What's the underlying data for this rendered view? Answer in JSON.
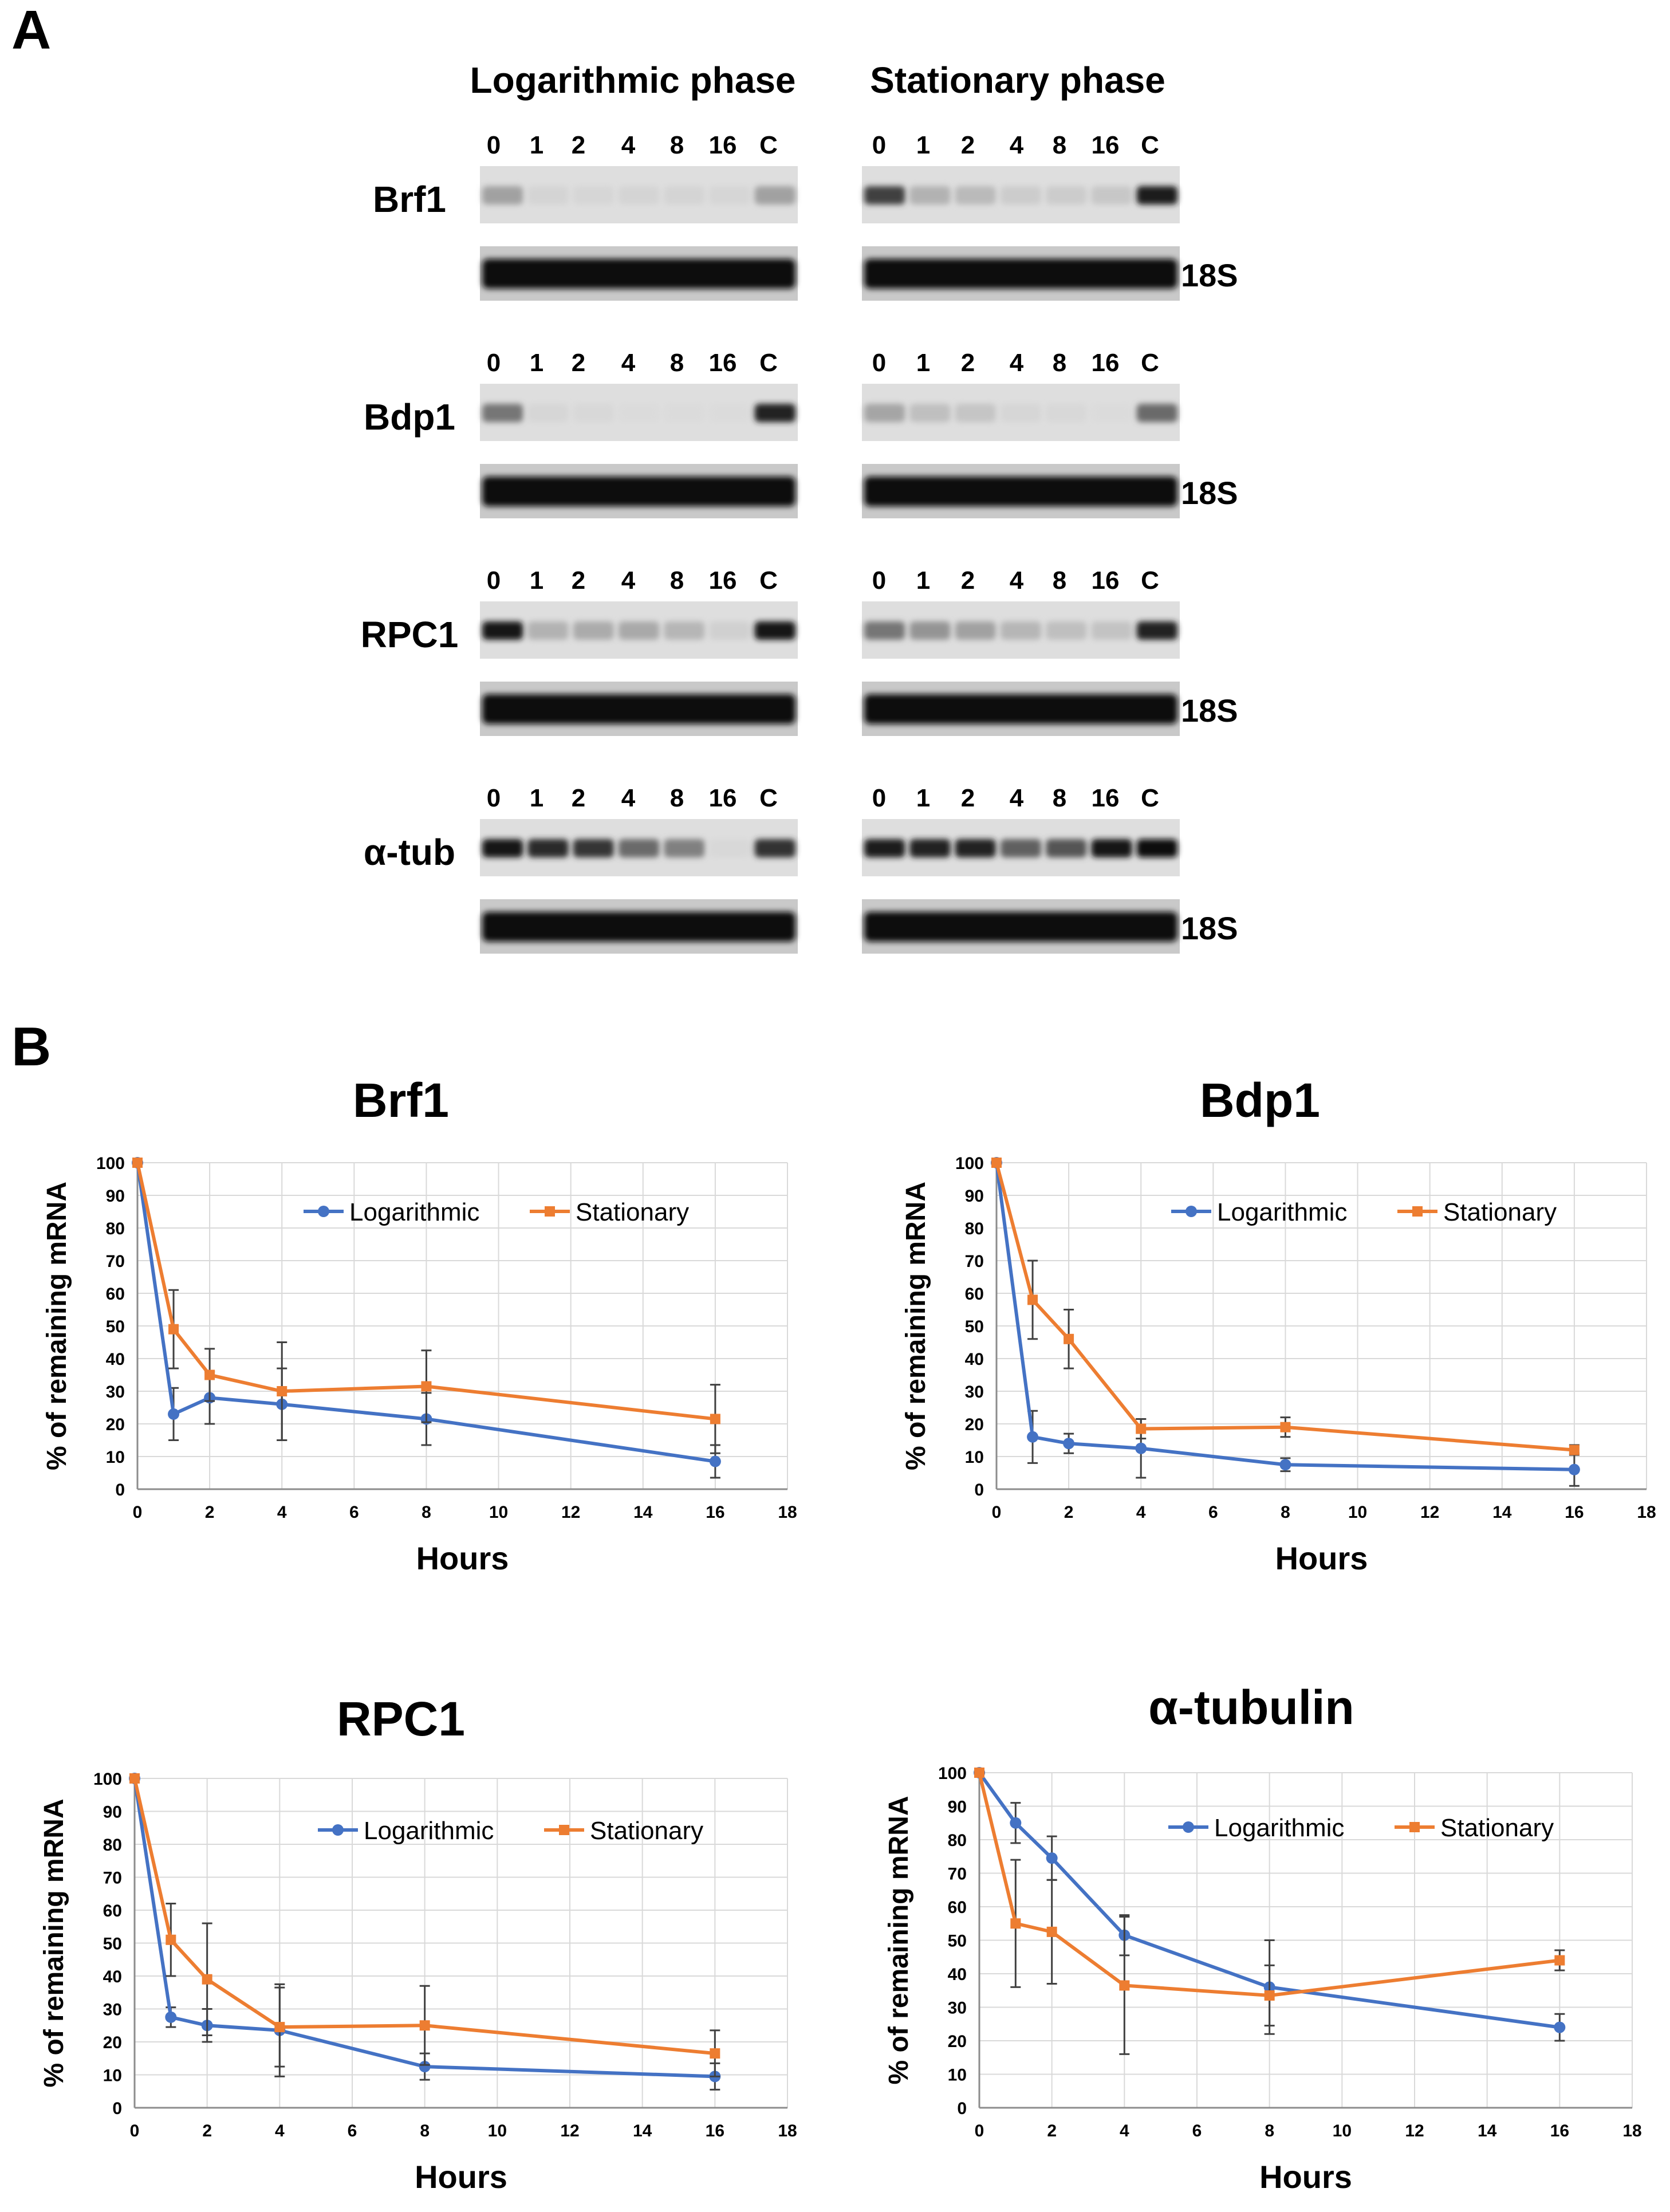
{
  "panel_a": {
    "label": "A",
    "headers": [
      "Logarithmic phase",
      "Stationary phase"
    ],
    "lane_labels": {
      "log": [
        "0",
        "1",
        "2",
        "4",
        "8",
        "16",
        "C"
      ],
      "stat": [
        "0",
        "1",
        "2",
        "4",
        "8",
        "16",
        "C"
      ]
    },
    "control_label": "18S",
    "blots": [
      {
        "gene": "Brf1",
        "log": [
          0.3,
          0.06,
          0.05,
          0.06,
          0.06,
          0.05,
          0.3
        ],
        "stat": [
          0.75,
          0.22,
          0.18,
          0.1,
          0.1,
          0.12,
          0.92
        ]
      },
      {
        "gene": "Bdp1",
        "log": [
          0.5,
          0.05,
          0.04,
          0.03,
          0.03,
          0.03,
          0.9
        ],
        "stat": [
          0.28,
          0.16,
          0.13,
          0.05,
          0.04,
          0.03,
          0.55
        ]
      },
      {
        "gene": "RPC1",
        "log": [
          0.95,
          0.22,
          0.25,
          0.26,
          0.2,
          0.08,
          0.95
        ],
        "stat": [
          0.5,
          0.36,
          0.3,
          0.2,
          0.16,
          0.14,
          0.88
        ]
      },
      {
        "gene": "α-tub",
        "log": [
          0.95,
          0.85,
          0.8,
          0.55,
          0.45,
          0.04,
          0.82
        ],
        "stat": [
          0.92,
          0.9,
          0.88,
          0.6,
          0.65,
          0.94,
          0.98
        ]
      }
    ]
  },
  "panel_b": {
    "label": "B",
    "colors": {
      "log": "#4472C4",
      "stat": "#ED7D31",
      "error": "#404040",
      "grid": "#D9D9D9"
    }
  },
  "chart_data": [
    {
      "type": "line",
      "title": "Brf1",
      "xlabel": "Hours",
      "ylabel": "% of remaining mRNA",
      "xlim": [
        0,
        18
      ],
      "ylim": [
        0,
        100
      ],
      "xticks": [
        0,
        2,
        4,
        6,
        8,
        10,
        12,
        14,
        16,
        18
      ],
      "yticks": [
        0,
        10,
        20,
        30,
        40,
        50,
        60,
        70,
        80,
        90,
        100
      ],
      "legend": "top-right",
      "series": [
        {
          "name": "Logarithmic",
          "color": "#4472C4",
          "marker": "circle",
          "x": [
            0,
            1,
            2,
            4,
            8,
            16
          ],
          "y": [
            100,
            23,
            28,
            26,
            21.5,
            8.5
          ],
          "error": [
            0,
            8,
            8,
            11,
            8,
            5
          ]
        },
        {
          "name": "Stationary",
          "color": "#ED7D31",
          "marker": "square",
          "x": [
            0,
            1,
            2,
            4,
            8,
            16
          ],
          "y": [
            100,
            49,
            35,
            30,
            31.5,
            21.5
          ],
          "error": [
            0,
            12,
            8,
            15,
            11,
            10.5
          ]
        }
      ]
    },
    {
      "type": "line",
      "title": "Bdp1",
      "xlabel": "Hours",
      "ylabel": "% of remaining mRNA",
      "xlim": [
        0,
        18
      ],
      "ylim": [
        0,
        100
      ],
      "xticks": [
        0,
        2,
        4,
        6,
        8,
        10,
        12,
        14,
        16,
        18
      ],
      "yticks": [
        0,
        10,
        20,
        30,
        40,
        50,
        60,
        70,
        80,
        90,
        100
      ],
      "legend": "top-right",
      "series": [
        {
          "name": "Logarithmic",
          "color": "#4472C4",
          "marker": "circle",
          "x": [
            0,
            1,
            2,
            4,
            8,
            16
          ],
          "y": [
            100,
            16,
            14,
            12.5,
            7.5,
            6
          ],
          "error": [
            0,
            8,
            3,
            9,
            2,
            5
          ]
        },
        {
          "name": "Stationary",
          "color": "#ED7D31",
          "marker": "square",
          "x": [
            0,
            1,
            2,
            4,
            8,
            16
          ],
          "y": [
            100,
            58,
            46,
            18.5,
            19,
            12
          ],
          "error": [
            0,
            12,
            9,
            3,
            3,
            1.5
          ]
        }
      ]
    },
    {
      "type": "line",
      "title": "RPC1",
      "xlabel": "Hours",
      "ylabel": "% of remaining mRNA",
      "xlim": [
        0,
        18
      ],
      "ylim": [
        0,
        100
      ],
      "xticks": [
        0,
        2,
        4,
        6,
        8,
        10,
        12,
        14,
        16,
        18
      ],
      "yticks": [
        0,
        10,
        20,
        30,
        40,
        50,
        60,
        70,
        80,
        90,
        100
      ],
      "legend": "top-right",
      "series": [
        {
          "name": "Logarithmic",
          "color": "#4472C4",
          "marker": "circle",
          "x": [
            0,
            1,
            2,
            4,
            8,
            16
          ],
          "y": [
            100,
            27.5,
            25,
            23.5,
            12.5,
            9.5
          ],
          "error": [
            0,
            3,
            5,
            14,
            4,
            4
          ]
        },
        {
          "name": "Stationary",
          "color": "#ED7D31",
          "marker": "square",
          "x": [
            0,
            1,
            2,
            4,
            8,
            16
          ],
          "y": [
            100,
            51,
            39,
            24.5,
            25,
            16.5
          ],
          "error": [
            0,
            11,
            17,
            12,
            12,
            7
          ]
        }
      ]
    },
    {
      "type": "line",
      "title": "α-tubulin",
      "xlabel": "Hours",
      "ylabel": "% of remaining mRNA",
      "xlim": [
        0,
        18
      ],
      "ylim": [
        0,
        100
      ],
      "xticks": [
        0,
        2,
        4,
        6,
        8,
        10,
        12,
        14,
        16,
        18
      ],
      "yticks": [
        0,
        10,
        20,
        30,
        40,
        50,
        60,
        70,
        80,
        90,
        100
      ],
      "legend": "top-right",
      "series": [
        {
          "name": "Logarithmic",
          "color": "#4472C4",
          "marker": "circle",
          "x": [
            0,
            1,
            2,
            4,
            8,
            16
          ],
          "y": [
            100,
            85,
            74.5,
            51.5,
            36,
            24
          ],
          "error": [
            0,
            6,
            6.5,
            6,
            14,
            4
          ]
        },
        {
          "name": "Stationary",
          "color": "#ED7D31",
          "marker": "square",
          "x": [
            0,
            1,
            2,
            4,
            8,
            16
          ],
          "y": [
            100,
            55,
            52.5,
            36.5,
            33.5,
            44
          ],
          "error": [
            0,
            19,
            15.5,
            20.5,
            9,
            3
          ]
        }
      ]
    }
  ]
}
